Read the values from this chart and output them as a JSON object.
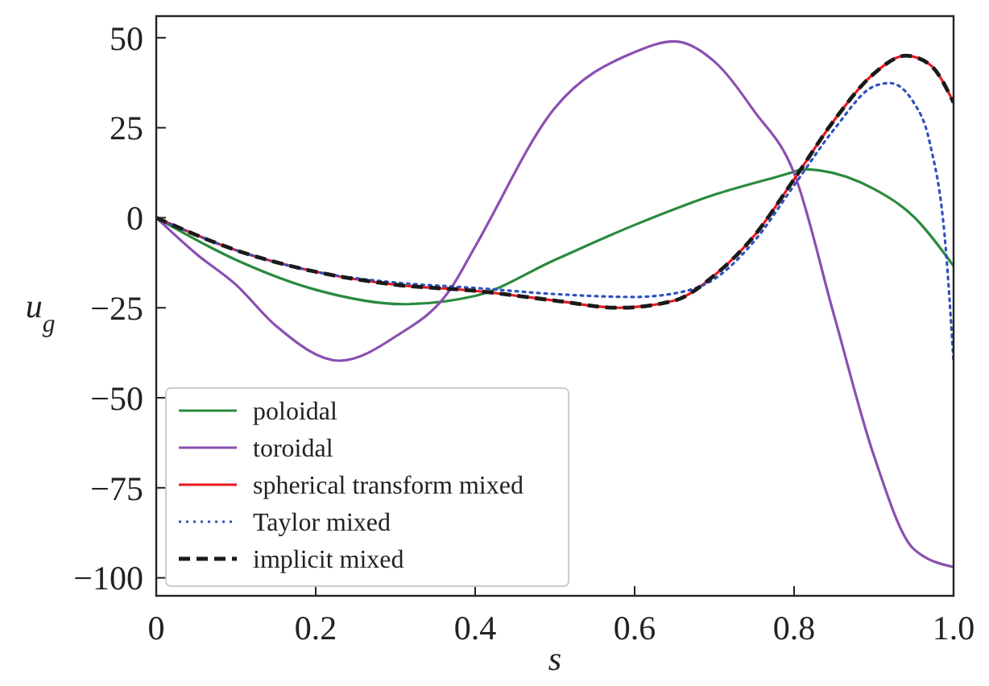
{
  "chart_data": {
    "type": "line",
    "xlabel": "s",
    "ylabel": "u$_{g}$",
    "xlim": [
      0,
      1
    ],
    "ylim": [
      -105,
      56
    ],
    "xticks": [
      0,
      0.2,
      0.4,
      0.6,
      0.8,
      {
        "value": 1,
        "label": "1.0"
      }
    ],
    "yticks": [
      {
        "value": -100,
        "label": "−100"
      },
      {
        "value": -75,
        "label": "−75"
      },
      {
        "value": -50,
        "label": "−50"
      },
      {
        "value": -25,
        "label": "−25"
      },
      0,
      25,
      50
    ],
    "grid": false,
    "legend": "bottom left",
    "series": [
      {
        "name": "poloidal",
        "color": "#2a8a3e",
        "line_style": "solid",
        "x": [
          0,
          0.1,
          0.2,
          0.31,
          0.4,
          0.5,
          0.6,
          0.7,
          0.8,
          0.81,
          0.9,
          0.95,
          1
        ],
        "values": [
          0,
          -11.7,
          -20,
          -24,
          -21.7,
          -11.7,
          -2,
          6.4,
          12.8,
          13.5,
          8,
          0.3,
          -13.4
        ]
      },
      {
        "name": "toroidal",
        "color": "#8a4fb0",
        "line_style": "solid",
        "x": [
          0,
          0.05,
          0.1,
          0.15,
          0.23,
          0.3,
          0.37,
          0.4,
          0.5,
          0.6,
          0.65,
          0.7,
          0.75,
          0.8,
          0.85,
          0.9,
          0.95,
          1
        ],
        "values": [
          0,
          -10,
          -18.6,
          -30,
          -39.7,
          -33,
          -19.5,
          -8,
          30.5,
          46,
          49,
          43.4,
          29.6,
          12.4,
          -27,
          -66,
          -92,
          -97
        ]
      },
      {
        "name": "spherical transform mixed",
        "color": "#e8191f",
        "line_style": "solid",
        "x": [
          0,
          0.1,
          0.2,
          0.3,
          0.4,
          0.5,
          0.58,
          0.65,
          0.7,
          0.75,
          0.8,
          0.85,
          0.9,
          0.94,
          0.97,
          1
        ],
        "values": [
          0,
          -9,
          -15,
          -18.6,
          -20.3,
          -23,
          -25,
          -23,
          -16,
          -5,
          10.7,
          27,
          40,
          45,
          42.6,
          32
        ]
      },
      {
        "name": "Taylor mixed",
        "color": "#3050c0",
        "line_style": "dotted",
        "x": [
          0,
          0.1,
          0.2,
          0.3,
          0.4,
          0.5,
          0.6,
          0.65,
          0.7,
          0.75,
          0.8,
          0.85,
          0.9,
          0.92,
          0.95,
          0.97,
          0.99,
          1
        ],
        "values": [
          0,
          -9,
          -15,
          -18,
          -19.5,
          -21.2,
          -22,
          -21,
          -17,
          -6.5,
          9,
          24.5,
          36.5,
          37.4,
          32,
          21,
          -8,
          -40
        ]
      },
      {
        "name": "implicit mixed",
        "color": "#1a1a1a",
        "line_style": "dashed",
        "x": [
          0,
          0.1,
          0.2,
          0.3,
          0.4,
          0.5,
          0.58,
          0.65,
          0.7,
          0.75,
          0.8,
          0.85,
          0.9,
          0.94,
          0.97,
          1
        ],
        "values": [
          0,
          -9,
          -15,
          -18.6,
          -20.3,
          -23,
          -25,
          -23,
          -16,
          -5,
          10.7,
          27,
          40,
          45,
          42.6,
          32
        ]
      }
    ]
  }
}
